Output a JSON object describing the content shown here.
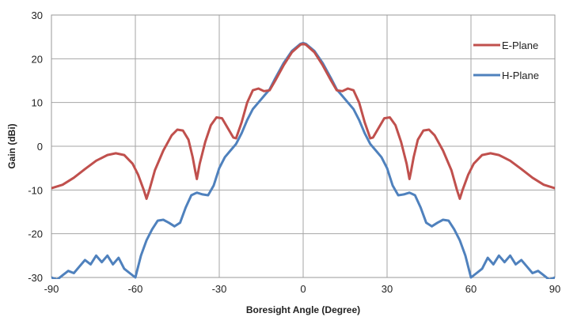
{
  "chart_data": {
    "type": "line",
    "xlabel": "Boresight Angle (Degree)",
    "ylabel": "Gain (dBi)",
    "xlim": [
      -90,
      90
    ],
    "ylim": [
      -30,
      30
    ],
    "x_ticks": [
      -90,
      -60,
      -30,
      0,
      30,
      60,
      90
    ],
    "y_ticks": [
      -30,
      -20,
      -10,
      0,
      10,
      20,
      30
    ],
    "grid": true,
    "legend": "top-right",
    "series": [
      {
        "name": "E-Plane",
        "color": "#c0504d",
        "points": [
          [
            -90,
            -9.6
          ],
          [
            -86,
            -8.8
          ],
          [
            -82,
            -7.2
          ],
          [
            -78,
            -5.2
          ],
          [
            -74,
            -3.3
          ],
          [
            -70,
            -2.0
          ],
          [
            -67,
            -1.6
          ],
          [
            -64,
            -2.0
          ],
          [
            -61,
            -4.0
          ],
          [
            -59,
            -6.5
          ],
          [
            -57,
            -10.0
          ],
          [
            -56,
            -12.0
          ],
          [
            -55,
            -10.0
          ],
          [
            -53,
            -5.5
          ],
          [
            -50,
            -1.0
          ],
          [
            -47,
            2.5
          ],
          [
            -45,
            3.8
          ],
          [
            -43,
            3.6
          ],
          [
            -41,
            1.5
          ],
          [
            -39.5,
            -2.5
          ],
          [
            -38.5,
            -6.0
          ],
          [
            -38,
            -7.5
          ],
          [
            -37,
            -4.0
          ],
          [
            -35,
            1.0
          ],
          [
            -33,
            4.8
          ],
          [
            -31,
            6.6
          ],
          [
            -29,
            6.4
          ],
          [
            -27,
            4.2
          ],
          [
            -25,
            2.0
          ],
          [
            -24,
            1.8
          ],
          [
            -22,
            5.5
          ],
          [
            -20,
            10.0
          ],
          [
            -18,
            12.8
          ],
          [
            -16,
            13.2
          ],
          [
            -14,
            12.6
          ],
          [
            -12,
            12.8
          ],
          [
            -10,
            15.0
          ],
          [
            -7,
            18.5
          ],
          [
            -4,
            21.5
          ],
          [
            -1,
            23.2
          ],
          [
            0,
            23.4
          ],
          [
            1,
            23.2
          ],
          [
            4,
            21.5
          ],
          [
            7,
            18.5
          ],
          [
            10,
            15.0
          ],
          [
            12,
            12.8
          ],
          [
            14,
            12.6
          ],
          [
            16,
            13.2
          ],
          [
            18,
            12.8
          ],
          [
            20,
            10.0
          ],
          [
            22,
            5.5
          ],
          [
            24,
            1.8
          ],
          [
            25,
            2.0
          ],
          [
            27,
            4.2
          ],
          [
            29,
            6.4
          ],
          [
            31,
            6.6
          ],
          [
            33,
            4.8
          ],
          [
            35,
            1.0
          ],
          [
            37,
            -4.0
          ],
          [
            38,
            -7.5
          ],
          [
            38.5,
            -6.0
          ],
          [
            39.5,
            -2.5
          ],
          [
            41,
            1.5
          ],
          [
            43,
            3.6
          ],
          [
            45,
            3.8
          ],
          [
            47,
            2.5
          ],
          [
            50,
            -1.0
          ],
          [
            53,
            -5.5
          ],
          [
            55,
            -10.0
          ],
          [
            56,
            -12.0
          ],
          [
            57,
            -10.0
          ],
          [
            59,
            -6.5
          ],
          [
            61,
            -4.0
          ],
          [
            64,
            -2.0
          ],
          [
            67,
            -1.6
          ],
          [
            70,
            -2.0
          ],
          [
            74,
            -3.3
          ],
          [
            78,
            -5.2
          ],
          [
            82,
            -7.2
          ],
          [
            86,
            -8.8
          ],
          [
            90,
            -9.6
          ]
        ]
      },
      {
        "name": "H-Plane",
        "color": "#4f81bd",
        "points": [
          [
            -90,
            -30
          ],
          [
            -88,
            -30.5
          ],
          [
            -86,
            -29.5
          ],
          [
            -84,
            -28.5
          ],
          [
            -82,
            -29.0
          ],
          [
            -80,
            -27.5
          ],
          [
            -78,
            -26.0
          ],
          [
            -76,
            -27.0
          ],
          [
            -74,
            -25.0
          ],
          [
            -72,
            -26.5
          ],
          [
            -70,
            -25.0
          ],
          [
            -68,
            -27.0
          ],
          [
            -66,
            -25.5
          ],
          [
            -64,
            -28.0
          ],
          [
            -62,
            -29.0
          ],
          [
            -60,
            -30
          ],
          [
            -58,
            -25.0
          ],
          [
            -56,
            -21.5
          ],
          [
            -54,
            -19.0
          ],
          [
            -52,
            -17.0
          ],
          [
            -50,
            -16.8
          ],
          [
            -48,
            -17.5
          ],
          [
            -46,
            -18.3
          ],
          [
            -44,
            -17.5
          ],
          [
            -42,
            -14.0
          ],
          [
            -40,
            -11.2
          ],
          [
            -38,
            -10.6
          ],
          [
            -36,
            -11.0
          ],
          [
            -34,
            -11.2
          ],
          [
            -32,
            -9.0
          ],
          [
            -30,
            -5.0
          ],
          [
            -28,
            -2.5
          ],
          [
            -26,
            -1.0
          ],
          [
            -24,
            0.5
          ],
          [
            -22,
            3.0
          ],
          [
            -20,
            6.0
          ],
          [
            -18,
            8.5
          ],
          [
            -16,
            10.0
          ],
          [
            -14,
            11.5
          ],
          [
            -12,
            13.0
          ],
          [
            -10,
            15.5
          ],
          [
            -7,
            19.0
          ],
          [
            -4,
            21.8
          ],
          [
            -1,
            23.4
          ],
          [
            0,
            23.6
          ],
          [
            1,
            23.4
          ],
          [
            4,
            21.8
          ],
          [
            7,
            19.0
          ],
          [
            10,
            15.5
          ],
          [
            12,
            13.0
          ],
          [
            14,
            11.5
          ],
          [
            16,
            10.0
          ],
          [
            18,
            8.5
          ],
          [
            20,
            6.0
          ],
          [
            22,
            3.0
          ],
          [
            24,
            0.5
          ],
          [
            26,
            -1.0
          ],
          [
            28,
            -2.5
          ],
          [
            30,
            -5.0
          ],
          [
            32,
            -9.0
          ],
          [
            34,
            -11.2
          ],
          [
            36,
            -11.0
          ],
          [
            38,
            -10.6
          ],
          [
            40,
            -11.2
          ],
          [
            42,
            -14.0
          ],
          [
            44,
            -17.5
          ],
          [
            46,
            -18.3
          ],
          [
            48,
            -17.5
          ],
          [
            50,
            -16.8
          ],
          [
            52,
            -17.0
          ],
          [
            54,
            -19.0
          ],
          [
            56,
            -21.5
          ],
          [
            58,
            -25.0
          ],
          [
            60,
            -30
          ],
          [
            62,
            -29.0
          ],
          [
            64,
            -28.0
          ],
          [
            66,
            -25.5
          ],
          [
            68,
            -27.0
          ],
          [
            70,
            -25.0
          ],
          [
            72,
            -26.5
          ],
          [
            74,
            -25.0
          ],
          [
            76,
            -27.0
          ],
          [
            78,
            -26.0
          ],
          [
            80,
            -27.5
          ],
          [
            82,
            -29.0
          ],
          [
            84,
            -28.5
          ],
          [
            86,
            -29.5
          ],
          [
            88,
            -30.5
          ],
          [
            90,
            -30
          ]
        ]
      }
    ]
  }
}
